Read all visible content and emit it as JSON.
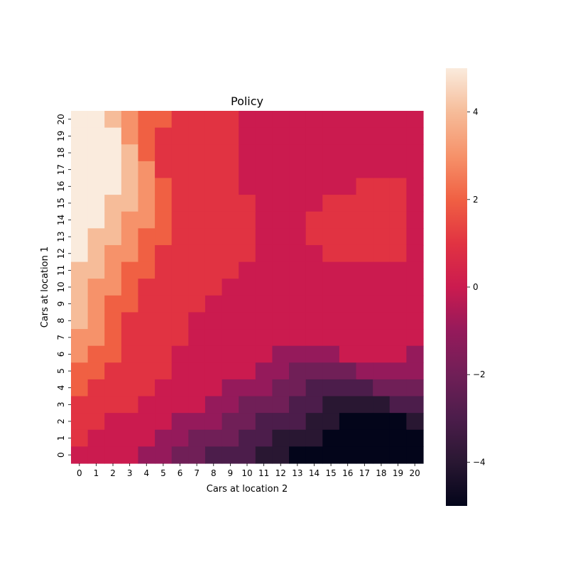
{
  "chart_data": {
    "type": "heatmap",
    "title": "Policy",
    "xlabel": "Cars at location 2",
    "ylabel": "Cars at location 1",
    "x_ticks": [
      "0",
      "1",
      "2",
      "3",
      "4",
      "5",
      "6",
      "7",
      "8",
      "9",
      "10",
      "11",
      "12",
      "13",
      "14",
      "15",
      "16",
      "17",
      "18",
      "19",
      "20"
    ],
    "y_ticks": [
      "0",
      "1",
      "2",
      "3",
      "4",
      "5",
      "6",
      "7",
      "8",
      "9",
      "10",
      "11",
      "12",
      "13",
      "14",
      "15",
      "16",
      "17",
      "18",
      "19",
      "20"
    ],
    "colorbar": {
      "vmin": -5,
      "vmax": 5,
      "ticks": [
        -4,
        -2,
        0,
        2,
        4
      ],
      "tick_labels": [
        "−4",
        "−2",
        "0",
        "2",
        "4"
      ]
    },
    "colorscale": "rocket",
    "grid": false,
    "legend": "none",
    "rows_top_to_bottom": [
      [
        5,
        5,
        4,
        3,
        2,
        2,
        1,
        1,
        1,
        1,
        0,
        0,
        0,
        0,
        0,
        0,
        0,
        0,
        0,
        0,
        0
      ],
      [
        5,
        5,
        5,
        3,
        2,
        1,
        1,
        1,
        1,
        1,
        0,
        0,
        0,
        0,
        0,
        0,
        0,
        0,
        0,
        0,
        0
      ],
      [
        5,
        5,
        5,
        4,
        2,
        1,
        1,
        1,
        1,
        1,
        0,
        0,
        0,
        0,
        0,
        0,
        0,
        0,
        0,
        0,
        0
      ],
      [
        5,
        5,
        5,
        4,
        3,
        1,
        1,
        1,
        1,
        1,
        0,
        0,
        0,
        0,
        0,
        0,
        0,
        0,
        0,
        0,
        0
      ],
      [
        5,
        5,
        5,
        4,
        3,
        2,
        1,
        1,
        1,
        1,
        0,
        0,
        0,
        0,
        0,
        0,
        0,
        1,
        1,
        1,
        0
      ],
      [
        5,
        5,
        4,
        4,
        3,
        2,
        1,
        1,
        1,
        1,
        1,
        0,
        0,
        0,
        0,
        1,
        1,
        1,
        1,
        1,
        0
      ],
      [
        5,
        5,
        4,
        3,
        3,
        2,
        1,
        1,
        1,
        1,
        1,
        0,
        0,
        0,
        1,
        1,
        1,
        1,
        1,
        1,
        0
      ],
      [
        5,
        4,
        4,
        3,
        2,
        2,
        1,
        1,
        1,
        1,
        1,
        0,
        0,
        0,
        1,
        1,
        1,
        1,
        1,
        1,
        0
      ],
      [
        5,
        4,
        3,
        3,
        2,
        1,
        1,
        1,
        1,
        1,
        1,
        0,
        0,
        0,
        0,
        1,
        1,
        1,
        1,
        1,
        0
      ],
      [
        4,
        4,
        3,
        2,
        2,
        1,
        1,
        1,
        1,
        1,
        0,
        0,
        0,
        0,
        0,
        0,
        0,
        0,
        0,
        0,
        0
      ],
      [
        4,
        3,
        3,
        2,
        1,
        1,
        1,
        1,
        1,
        0,
        0,
        0,
        0,
        0,
        0,
        0,
        0,
        0,
        0,
        0,
        0
      ],
      [
        4,
        3,
        2,
        2,
        1,
        1,
        1,
        1,
        0,
        0,
        0,
        0,
        0,
        0,
        0,
        0,
        0,
        0,
        0,
        0,
        0
      ],
      [
        4,
        3,
        2,
        1,
        1,
        1,
        1,
        0,
        0,
        0,
        0,
        0,
        0,
        0,
        0,
        0,
        0,
        0,
        0,
        0,
        0
      ],
      [
        3,
        3,
        2,
        1,
        1,
        1,
        1,
        0,
        0,
        0,
        0,
        0,
        0,
        0,
        0,
        0,
        0,
        0,
        0,
        0,
        0
      ],
      [
        3,
        2,
        2,
        1,
        1,
        1,
        0,
        0,
        0,
        0,
        0,
        0,
        -1,
        -1,
        -1,
        -1,
        0,
        0,
        0,
        0,
        -1
      ],
      [
        2,
        2,
        1,
        1,
        1,
        1,
        0,
        0,
        0,
        0,
        0,
        -1,
        -1,
        -2,
        -2,
        -2,
        -2,
        -1,
        -1,
        -1,
        -1
      ],
      [
        2,
        1,
        1,
        1,
        1,
        0,
        0,
        0,
        0,
        -1,
        -1,
        -1,
        -2,
        -2,
        -3,
        -3,
        -3,
        -3,
        -2,
        -2,
        -2
      ],
      [
        1,
        1,
        1,
        1,
        0,
        0,
        0,
        0,
        -1,
        -1,
        -2,
        -2,
        -2,
        -3,
        -3,
        -4,
        -4,
        -4,
        -4,
        -3,
        -3
      ],
      [
        1,
        1,
        0,
        0,
        0,
        0,
        -1,
        -1,
        -1,
        -2,
        -2,
        -3,
        -3,
        -3,
        -4,
        -4,
        -5,
        -5,
        -5,
        -5,
        -4
      ],
      [
        1,
        0,
        0,
        0,
        0,
        -1,
        -1,
        -2,
        -2,
        -2,
        -3,
        -3,
        -4,
        -4,
        -4,
        -5,
        -5,
        -5,
        -5,
        -5,
        -5
      ],
      [
        0,
        0,
        0,
        0,
        -1,
        -1,
        -2,
        -2,
        -3,
        -3,
        -3,
        -4,
        -4,
        -5,
        -5,
        -5,
        -5,
        -5,
        -5,
        -5,
        -5
      ]
    ]
  }
}
